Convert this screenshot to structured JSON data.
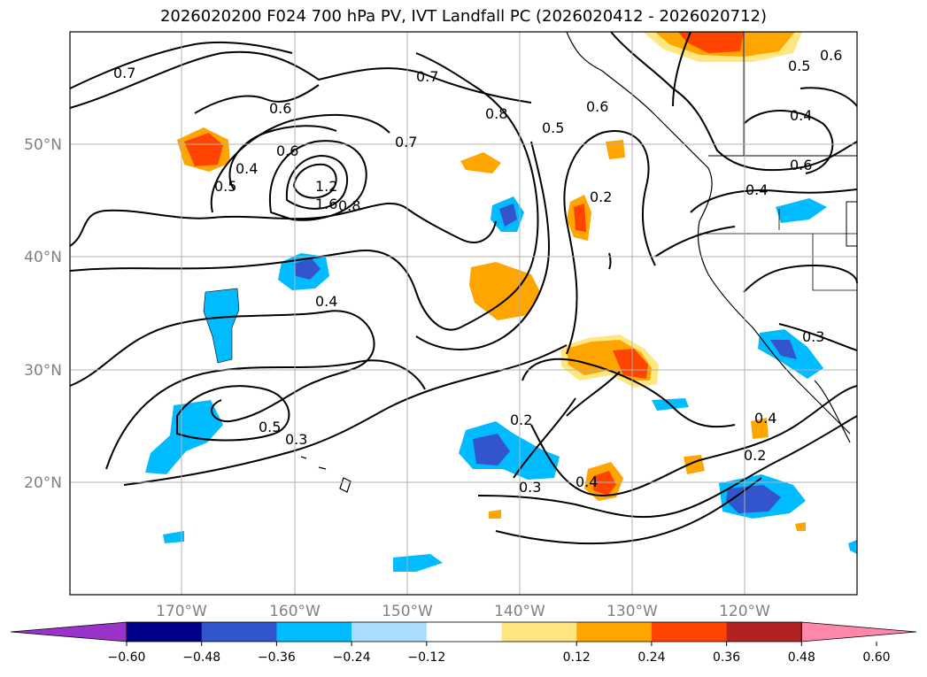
{
  "title": "2026020200 F024 700 hPa PV, IVT Landfall PC (2026020412 - 2026020712)",
  "lat_ticks": [
    "50°N",
    "40°N",
    "30°N",
    "20°N"
  ],
  "lon_ticks": [
    "170°W",
    "160°W",
    "150°W",
    "140°W",
    "130°W",
    "120°W"
  ],
  "contour_labels": [
    "0.7",
    "0.6",
    "0.7",
    "0.8",
    "0.5",
    "0.6",
    "0.6",
    "0.5",
    "0.4",
    "0.6",
    "0.5",
    "0.4",
    "0.6",
    "0.7",
    "1.2",
    "1.6",
    "0.8",
    "0.4",
    "0.2",
    "0.4",
    "0.3",
    "0.4",
    "0.5",
    "0.3",
    "0.2",
    "0.3",
    "0.4",
    "0.2"
  ],
  "colorbar": {
    "ticks": [
      "−0.60",
      "−0.48",
      "−0.36",
      "−0.24",
      "−0.12",
      "0.12",
      "0.24",
      "0.36",
      "0.48",
      "0.60"
    ],
    "colors": [
      "#9933cc",
      "#000088",
      "#3355cc",
      "#00bbff",
      "#aaddff",
      "#ffffff",
      "#ffe680",
      "#ffa500",
      "#ff4400",
      "#b22222",
      "#ff88aa"
    ]
  }
}
